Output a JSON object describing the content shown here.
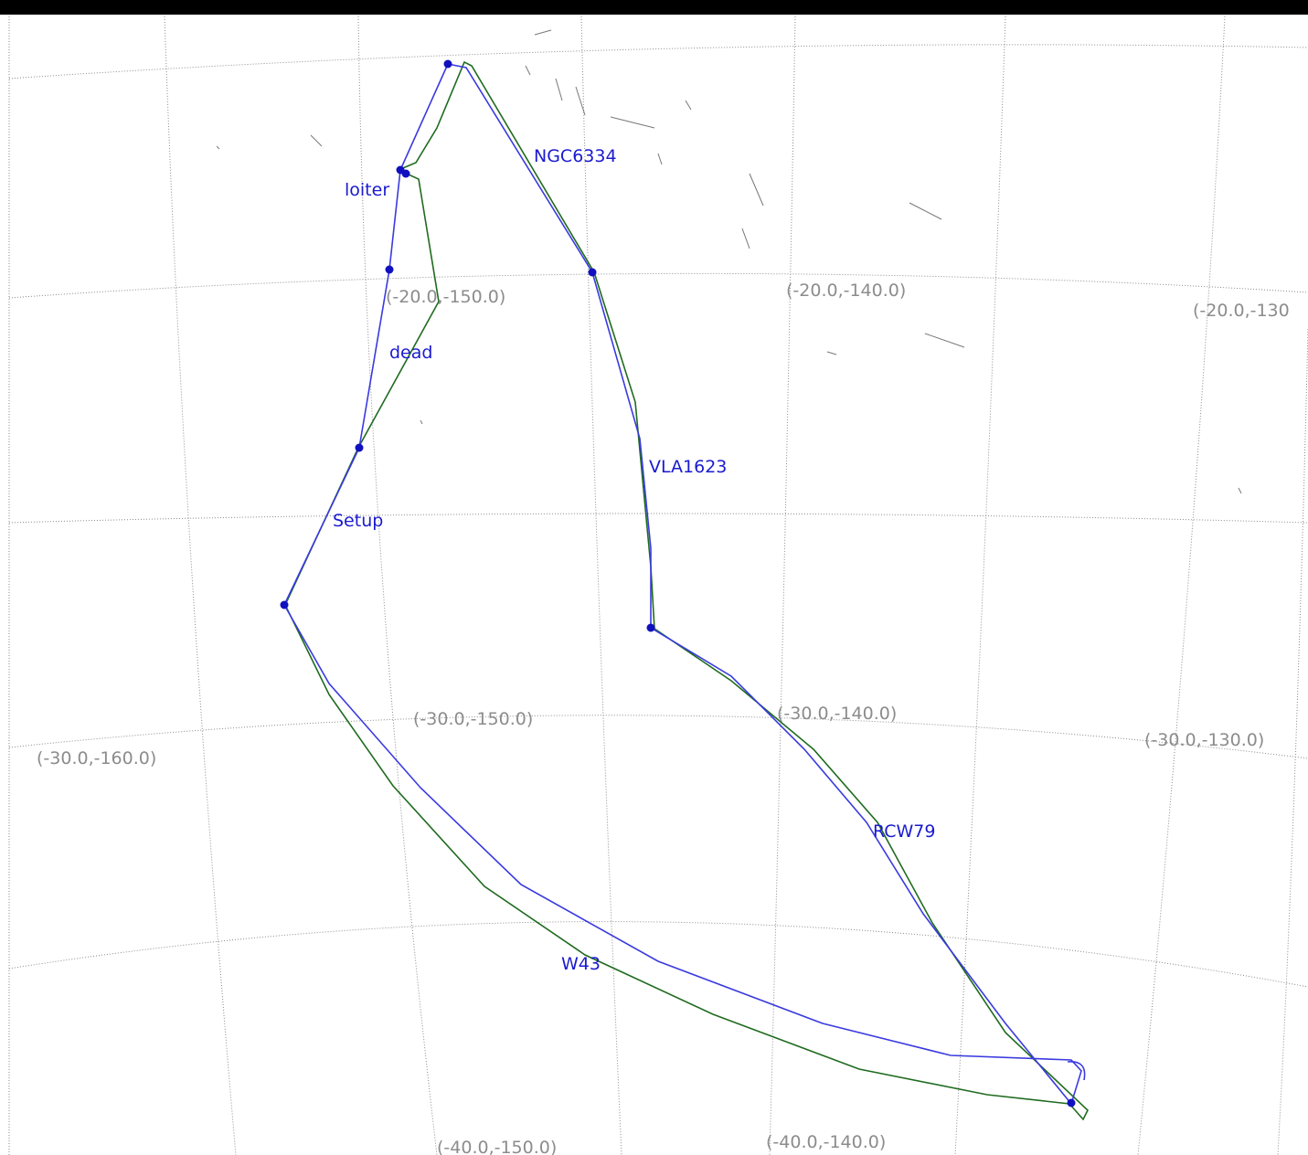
{
  "colors": {
    "grid": "#8a8a8a",
    "coord_label": "#8c8c8c",
    "waypoint_label": "#1a1ad0",
    "planned_track": "#3a3ae0",
    "flown_track": "#1f6b1f",
    "waypoint_marker": "#1010c0",
    "top_bar": "#000000"
  },
  "grid_labels": [
    {
      "id": "m20-m150",
      "text": "(-20.0,-150.0)"
    },
    {
      "id": "m20-m140",
      "text": "(-20.0,-140.0)"
    },
    {
      "id": "m20-m130",
      "text": "(-20.0,-130"
    },
    {
      "id": "m30-m160",
      "text": "(-30.0,-160.0)"
    },
    {
      "id": "m30-m150",
      "text": "(-30.0,-150.0)"
    },
    {
      "id": "m30-m140",
      "text": "(-30.0,-140.0)"
    },
    {
      "id": "m30-m130",
      "text": "(-30.0,-130.0)"
    },
    {
      "id": "m40-m150",
      "text": "(-40.0,-150.0)"
    },
    {
      "id": "m40-m140",
      "text": "(-40.0,-140.0)"
    }
  ],
  "waypoints": [
    {
      "id": "ngc6334",
      "label": "NGC6334"
    },
    {
      "id": "loiter",
      "label": "loiter"
    },
    {
      "id": "dead",
      "label": "dead"
    },
    {
      "id": "vla1623",
      "label": "VLA1623"
    },
    {
      "id": "setup",
      "label": "Setup"
    },
    {
      "id": "rcw79",
      "label": "RCW79"
    },
    {
      "id": "w43",
      "label": "W43"
    }
  ],
  "tracks": [
    {
      "id": "planned",
      "color": "#3a3ae0"
    },
    {
      "id": "flown",
      "color": "#1f6b1f"
    }
  ]
}
